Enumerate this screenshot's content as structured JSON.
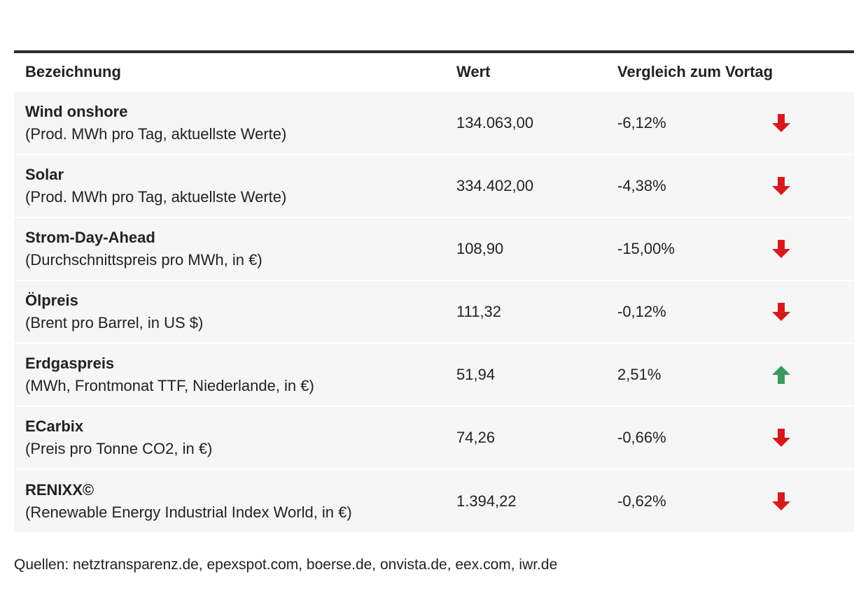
{
  "chart_data": {
    "type": "table",
    "columns": [
      "Bezeichnung",
      "Wert",
      "Vergleich zum Vortag"
    ],
    "rows": [
      {
        "name": "Wind onshore",
        "detail": "(Prod. MWh pro Tag, aktuellste Werte)",
        "value": "134.063,00",
        "change": "-6,12%",
        "direction": "down"
      },
      {
        "name": "Solar",
        "detail": "(Prod. MWh pro Tag, aktuellste Werte)",
        "value": "334.402,00",
        "change": "-4,38%",
        "direction": "down"
      },
      {
        "name": "Strom-Day-Ahead",
        "detail": "(Durchschnittspreis pro MWh, in €)",
        "value": "108,90",
        "change": "-15,00%",
        "direction": "down"
      },
      {
        "name": "Ölpreis",
        "detail": "(Brent pro Barrel, in US $)",
        "value": "111,32",
        "change": "-0,12%",
        "direction": "down"
      },
      {
        "name": "Erdgaspreis",
        "detail": "(MWh, Frontmonat TTF, Niederlande, in €)",
        "value": "51,94",
        "change": "2,51%",
        "direction": "up"
      },
      {
        "name": "ECarbix",
        "detail": "(Preis pro Tonne CO2, in €)",
        "value": "74,26",
        "change": "-0,66%",
        "direction": "down"
      },
      {
        "name": "RENIXX©",
        "detail": "(Renewable Energy Industrial Index World, in €)",
        "value": "1.394,22",
        "change": "-0,62%",
        "direction": "down"
      }
    ],
    "source": "Quellen: netztransparenz.de, epexspot.com, boerse.de, onvista.de, eex.com, iwr.de"
  },
  "colors": {
    "down_arrow": "#d7191c",
    "up_arrow": "#3a9a5b",
    "row_background": "#f6f6f6",
    "top_rule": "#2a2a2a"
  },
  "icons": {
    "down": "arrow-down-icon",
    "up": "arrow-up-icon"
  }
}
